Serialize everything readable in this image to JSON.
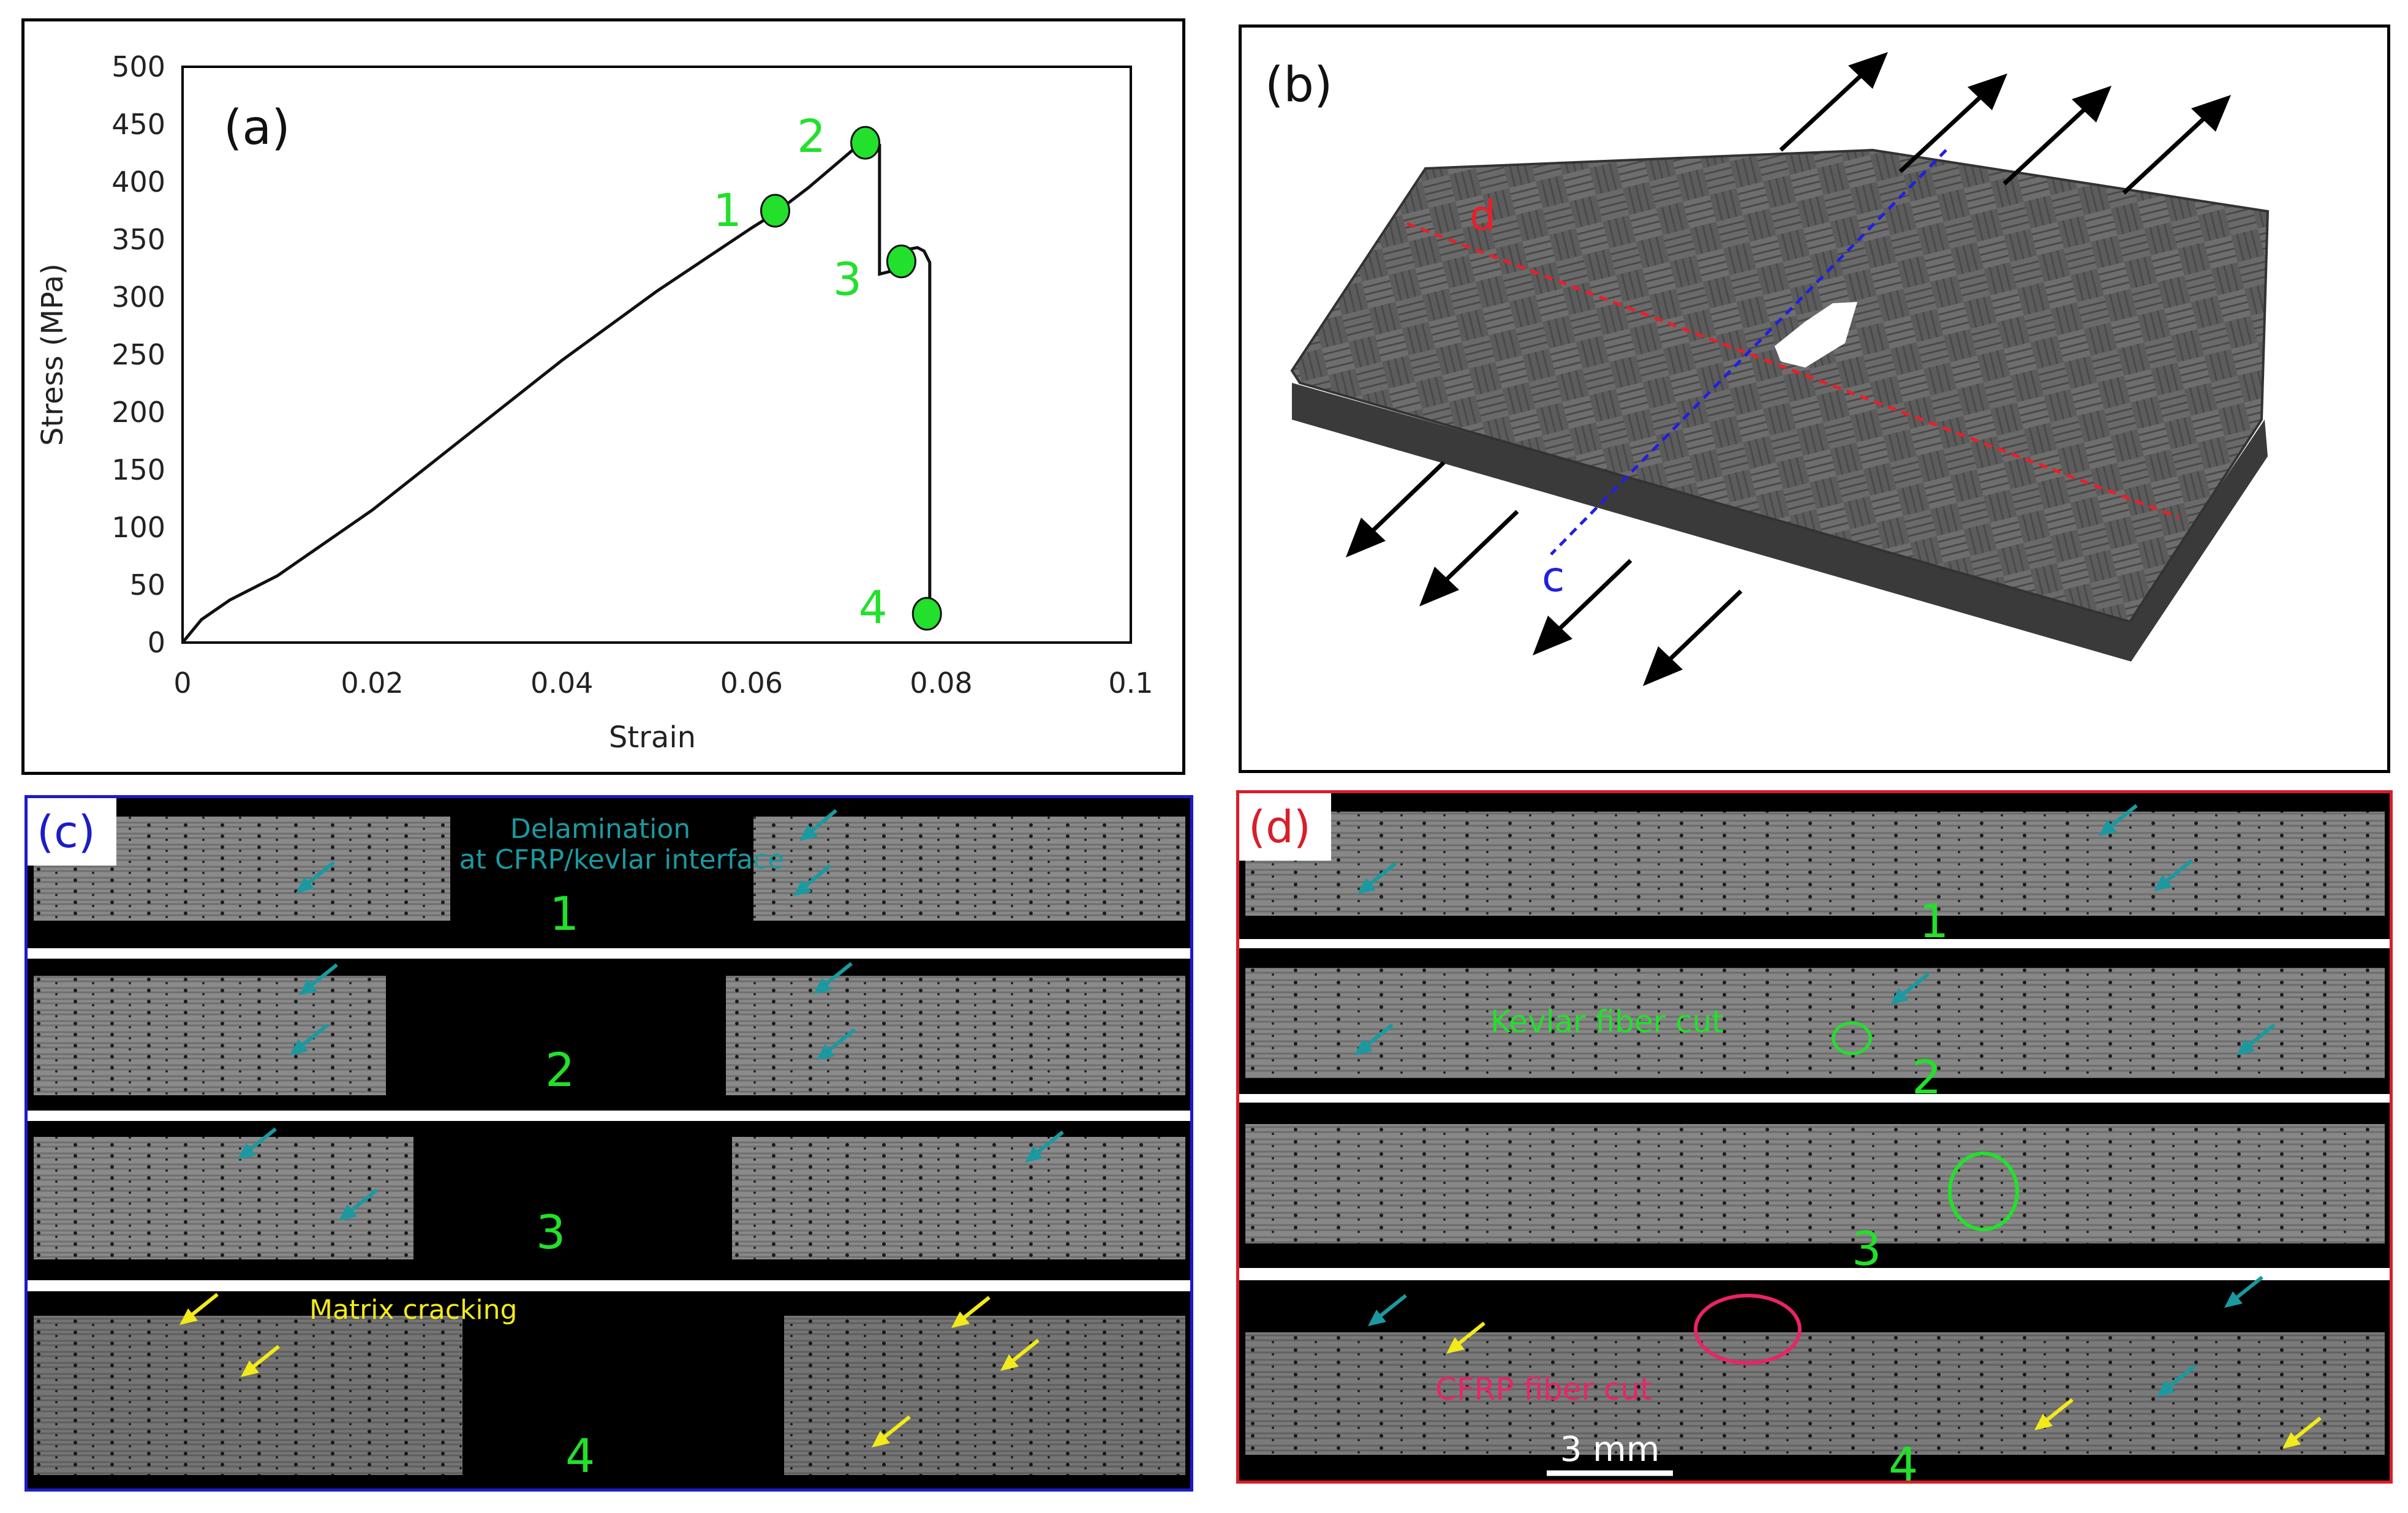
{
  "chart_data": {
    "type": "line",
    "panel_label": "(a)",
    "xlabel": "Strain",
    "ylabel": "Stress (MPa)",
    "xlim": [
      0,
      0.1
    ],
    "ylim": [
      0,
      500
    ],
    "x_ticks": [
      "0",
      "0.02",
      "0.04",
      "0.06",
      "0.08",
      "0.1"
    ],
    "y_ticks": [
      "0",
      "50",
      "100",
      "150",
      "200",
      "250",
      "300",
      "350",
      "400",
      "450",
      "500"
    ],
    "grid": false,
    "series": [
      {
        "x": [
          0,
          0.002,
          0.005,
          0.01,
          0.02,
          0.03,
          0.04,
          0.05,
          0.06,
          0.0625,
          0.066,
          0.07,
          0.072,
          0.0735,
          0.0735,
          0.0745,
          0.0755,
          0.0775,
          0.0782,
          0.0788,
          0.0788
        ],
        "y": [
          0,
          20,
          37,
          58,
          115,
          180,
          245,
          305,
          360,
          373,
          395,
          423,
          437,
          432,
          320,
          322,
          340,
          343,
          340,
          330,
          25
        ]
      }
    ],
    "markers": [
      {
        "label": "1",
        "x": 0.0625,
        "y": 375
      },
      {
        "label": "2",
        "x": 0.072,
        "y": 434
      },
      {
        "label": "3",
        "x": 0.0758,
        "y": 331
      },
      {
        "label": "4",
        "x": 0.0785,
        "y": 25
      }
    ],
    "marker_color": "#22e02b"
  },
  "panel_b": {
    "label": "(b)",
    "line_d_label": "d",
    "line_c_label": "c",
    "line_d_color": "#e8202a",
    "line_c_color": "#2020e0"
  },
  "panel_c": {
    "label": "(c)",
    "label_color": "#1c1cc8",
    "delamination_text_1": "Delamination",
    "delamination_text_2": "at CFRP/kevlar interface",
    "matrix_text": "Matrix cracking",
    "strip_numbers": [
      "1",
      "2",
      "3",
      "4"
    ]
  },
  "panel_d": {
    "label": "(d)",
    "label_color": "#d81e2a",
    "kevlar_text": "Kevlar fiber cut",
    "cfrp_text": "CFRP fiber cut",
    "scale_bar": "3 mm",
    "strip_numbers": [
      "1",
      "2",
      "3",
      "4"
    ]
  },
  "colors": {
    "number_green": "#22e02b",
    "teal_arrow": "#1a9aa0",
    "yellow_arrow": "#f2ea1a",
    "cfrp_pink": "#e8246a"
  }
}
